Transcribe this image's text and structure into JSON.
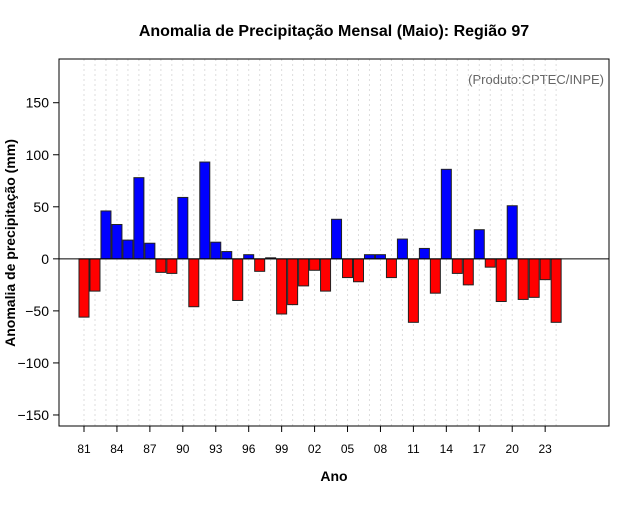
{
  "chart_data": {
    "type": "bar",
    "title": "Anomalia de Precipitação Mensal (Maio): Região 97",
    "annotation": "(Produto:CPTEC/INPE)",
    "xlabel": "Ano",
    "ylabel": "Anomalia de precipitação (mm)",
    "ylim": [
      -160.6,
      192
    ],
    "xlim": [
      1978.7,
      2026.8
    ],
    "yticks": [
      -150,
      -100,
      -50,
      0,
      50,
      100,
      150
    ],
    "ytick_labels": [
      "−150",
      "−100",
      "−50",
      "0",
      "50",
      "100",
      "150"
    ],
    "xticks": [
      1981,
      1984,
      1987,
      1990,
      1993,
      1996,
      1999,
      2002,
      2005,
      2008,
      2011,
      2014,
      2017,
      2020,
      2023
    ],
    "xtick_labels": [
      "81",
      "84",
      "87",
      "90",
      "93",
      "96",
      "99",
      "02",
      "05",
      "08",
      "11",
      "14",
      "17",
      "20",
      "23"
    ],
    "grid": "vertical dotted, each year",
    "colors": {
      "positive": "#0000ff",
      "negative": "#ff0000"
    },
    "x": [
      1981,
      1982,
      1983,
      1984,
      1985,
      1986,
      1987,
      1988,
      1989,
      1990,
      1991,
      1992,
      1993,
      1994,
      1995,
      1996,
      1997,
      1998,
      1999,
      2000,
      2001,
      2002,
      2003,
      2004,
      2005,
      2006,
      2007,
      2008,
      2009,
      2010,
      2011,
      2012,
      2013,
      2014,
      2015,
      2016,
      2017,
      2018,
      2019,
      2020,
      2021,
      2022,
      2023,
      2024
    ],
    "values": [
      -56,
      -31,
      46,
      33,
      18,
      78,
      15,
      -13,
      -14,
      59,
      -46,
      93,
      16,
      7,
      -40,
      4,
      -12,
      1,
      -53,
      -44,
      -26,
      -11,
      -31,
      38,
      -18,
      -22,
      4,
      4,
      -18,
      19,
      -61,
      10,
      -33,
      86,
      -14,
      -25,
      28,
      -8,
      -41,
      51,
      -39,
      -37,
      -20,
      -61
    ]
  }
}
